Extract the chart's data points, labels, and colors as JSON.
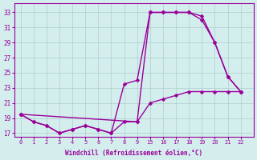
{
  "xlabel": "Windchill (Refroidissement éolien,°C)",
  "line_color": "#990099",
  "bg_color": "#d4eeee",
  "grid_color": "#b0cccc",
  "marker": "D",
  "marker_size": 2.5,
  "linewidth": 1.0,
  "series": [
    {
      "xi": [
        0,
        1,
        2,
        3,
        4,
        5,
        6,
        7,
        8,
        9,
        10,
        11,
        12,
        13,
        14,
        15,
        16,
        17
      ],
      "y": [
        19.5,
        18.5,
        18.0,
        17.0,
        17.5,
        18.0,
        17.5,
        17.0,
        18.5,
        18.5,
        33.0,
        33.0,
        33.0,
        33.0,
        32.0,
        29.0,
        24.5,
        22.5
      ]
    },
    {
      "xi": [
        0,
        1,
        2,
        3,
        4,
        5,
        6,
        7,
        8,
        9,
        10,
        11,
        12,
        13,
        14,
        15,
        16,
        17
      ],
      "y": [
        19.5,
        18.5,
        18.0,
        17.0,
        17.5,
        18.0,
        17.5,
        17.0,
        23.5,
        24.0,
        33.0,
        33.0,
        33.0,
        33.0,
        32.5,
        29.0,
        24.5,
        22.5
      ]
    },
    {
      "xi": [
        0,
        9,
        10,
        11,
        12,
        13,
        14,
        15,
        16,
        17
      ],
      "y": [
        19.5,
        18.5,
        21.0,
        21.5,
        22.0,
        22.5,
        22.5,
        22.5,
        22.5,
        22.5
      ]
    }
  ],
  "xtick_positions": [
    0,
    1,
    2,
    3,
    4,
    5,
    6,
    7,
    8,
    9,
    10,
    11,
    12,
    13,
    14,
    15,
    16,
    17
  ],
  "xtick_labels": [
    "0",
    "1",
    "2",
    "3",
    "4",
    "5",
    "6",
    "7",
    "8",
    "9",
    "15",
    "16",
    "17",
    "18",
    "19",
    "20",
    "21",
    "22"
  ],
  "xlim": [
    -0.5,
    18
  ],
  "ylim": [
    16.5,
    34.2
  ],
  "yticks": [
    17,
    19,
    21,
    23,
    25,
    27,
    29,
    31,
    33
  ]
}
